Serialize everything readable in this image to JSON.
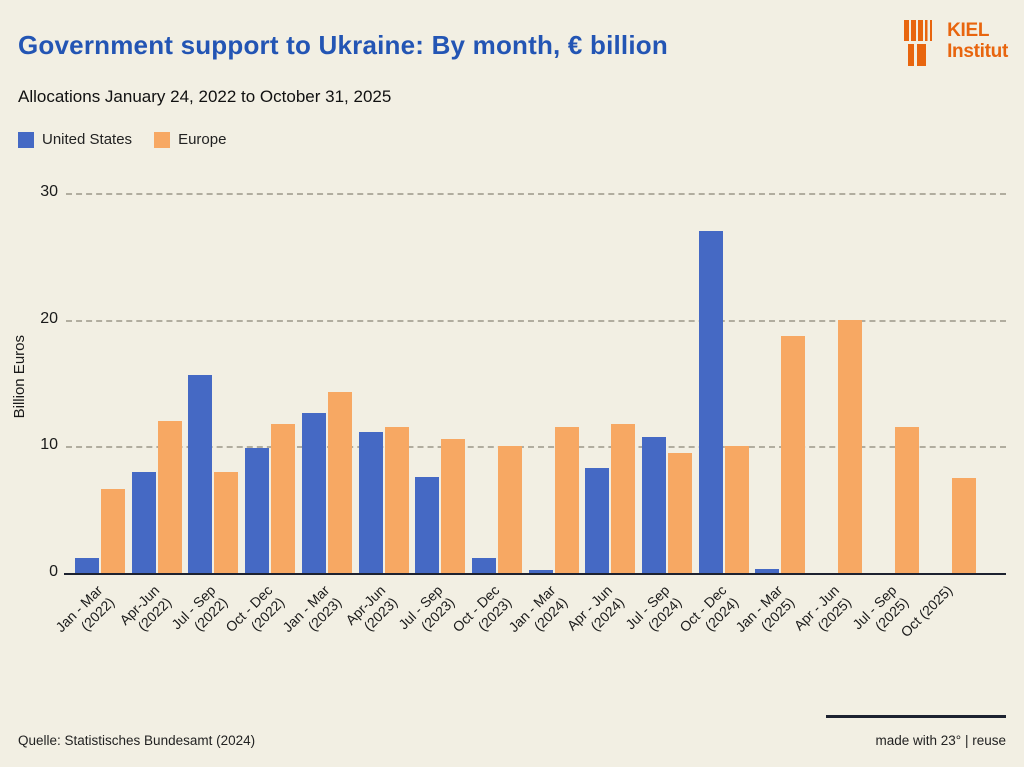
{
  "header": {
    "title": "Government support to Ukraine: By month, € billion",
    "subtitle": "Allocations January 24, 2022 to October 31, 2025",
    "logo": {
      "line1": "KIEL",
      "line2": "Institut"
    }
  },
  "legend": [
    {
      "label": "United States",
      "color": "#4569c4"
    },
    {
      "label": "Europe",
      "color": "#f7a863"
    }
  ],
  "palette": {
    "background": "#f2efe3",
    "title_blue": "#2355b4",
    "us_blue": "#4569c4",
    "europe_orange": "#f7a863",
    "kiel_orange": "#e8650e",
    "gridline_gray": "#b1ad9f",
    "axis_dark": "#1d2230"
  },
  "chart_data": {
    "type": "bar",
    "title": "Government support to Ukraine: By month, € billion",
    "subtitle": "Allocations January 24, 2022 to October 31, 2025",
    "xlabel": "",
    "ylabel": "Billion Euros",
    "ylim": [
      0,
      31
    ],
    "yticks": [
      0,
      10,
      20,
      30
    ],
    "grid": "horizontal dashed at 10, 20, 30",
    "legend_position": "top-left",
    "categories": [
      "Jan - Mar\n(2022)",
      "Apr-Jun\n(2022)",
      "Jul - Sep\n(2022)",
      "Oct - Dec\n(2022)",
      "Jan - Mar\n(2023)",
      "Apr-Jun\n(2023)",
      "Jul - Sep\n(2023)",
      "Oct - Dec\n(2023)",
      "Jan - Mar\n(2024)",
      "Apr - Jun\n(2024)",
      "Jul - Sep\n(2024)",
      "Oct - Dec\n(2024)",
      "Jan - Mar\n(2025)",
      "Apr - Jun\n(2025)",
      "Jul - Sep\n(2025)",
      "Oct (2025)"
    ],
    "series": [
      {
        "name": "United States",
        "color": "#4569c4",
        "values": [
          1.2,
          8.0,
          15.6,
          9.9,
          12.6,
          11.1,
          7.6,
          1.2,
          0.2,
          8.3,
          10.7,
          27.0,
          0.3,
          0,
          0,
          0
        ]
      },
      {
        "name": "Europe",
        "color": "#f7a863",
        "values": [
          6.6,
          12.0,
          8.0,
          11.8,
          14.3,
          11.5,
          10.6,
          10.0,
          11.5,
          11.8,
          9.5,
          10.0,
          18.7,
          20.0,
          11.5,
          7.5
        ]
      }
    ]
  },
  "footer": {
    "source": "Quelle: Statistisches Bundesamt (2024)",
    "credit": "made with 23° | reuse"
  }
}
